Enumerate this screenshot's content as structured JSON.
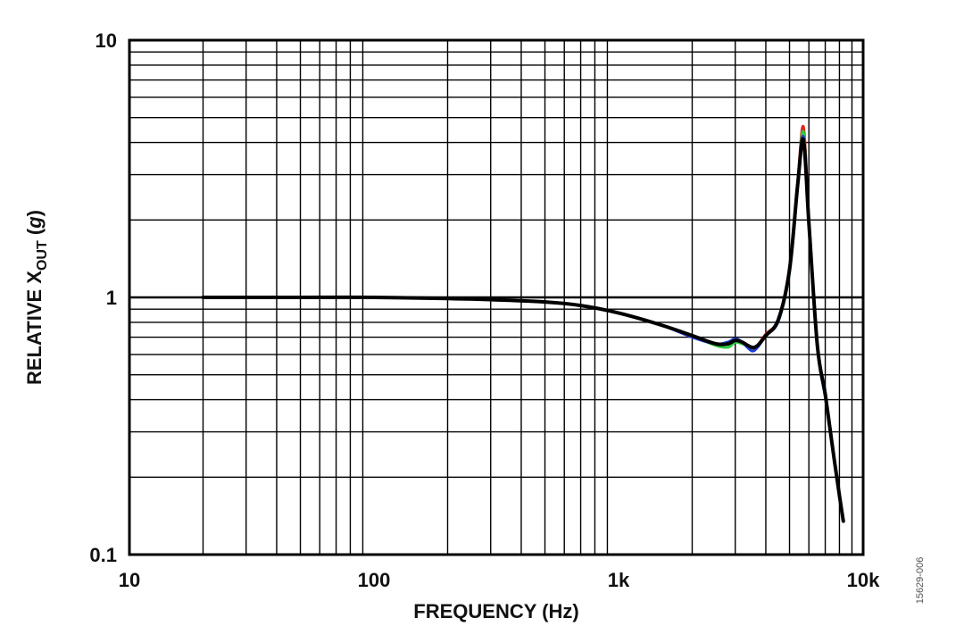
{
  "chart_data": {
    "type": "line",
    "xlabel": "FREQUENCY (Hz)",
    "ylabel": {
      "prefix": "RELATIVE X",
      "subscript": "OUT",
      "suffix": " (",
      "unit": "g",
      "close": ")"
    },
    "x_scale": "log",
    "y_scale": "log",
    "xlim": [
      10,
      10000
    ],
    "ylim": [
      0.1,
      10
    ],
    "grid": true,
    "x_ticks": [
      {
        "value": 10,
        "label": "10"
      },
      {
        "value": 100,
        "label": "100"
      },
      {
        "value": 1000,
        "label": "1k"
      },
      {
        "value": 10000,
        "label": "10k"
      }
    ],
    "y_ticks": [
      {
        "value": 0.1,
        "label": "0.1"
      },
      {
        "value": 1,
        "label": "1"
      },
      {
        "value": 10,
        "label": "10"
      }
    ],
    "series": [
      {
        "color": "#e8231c",
        "x": [
          20,
          30,
          50,
          100,
          200,
          300,
          500,
          700,
          1000,
          1500,
          2000,
          2500,
          2800,
          3000,
          3200,
          3500,
          3700,
          4000,
          4500,
          5000,
          5400,
          5700,
          6000,
          6500,
          7000,
          7500,
          8000,
          8300
        ],
        "y": [
          1.0,
          1.0,
          1.0,
          1.0,
          0.99,
          0.98,
          0.96,
          0.93,
          0.87,
          0.78,
          0.71,
          0.66,
          0.66,
          0.68,
          0.67,
          0.63,
          0.65,
          0.72,
          0.82,
          1.3,
          2.8,
          4.6,
          2.0,
          0.65,
          0.42,
          0.26,
          0.17,
          0.135
        ]
      },
      {
        "color": "#2ecc40",
        "x": [
          20,
          30,
          50,
          100,
          200,
          300,
          500,
          700,
          1000,
          1500,
          2000,
          2500,
          2800,
          3000,
          3200,
          3500,
          3700,
          4000,
          4500,
          5000,
          5400,
          5700,
          6000,
          6500,
          7000,
          7500,
          8000,
          8300
        ],
        "y": [
          1.0,
          1.0,
          1.0,
          1.0,
          0.99,
          0.98,
          0.96,
          0.93,
          0.87,
          0.78,
          0.71,
          0.65,
          0.64,
          0.67,
          0.66,
          0.64,
          0.65,
          0.71,
          0.81,
          1.25,
          2.7,
          4.4,
          1.95,
          0.64,
          0.41,
          0.26,
          0.17,
          0.135
        ]
      },
      {
        "color": "#1f3fd6",
        "x": [
          20,
          30,
          50,
          100,
          200,
          300,
          500,
          700,
          1000,
          1500,
          2000,
          2500,
          2800,
          3000,
          3200,
          3500,
          3700,
          4000,
          4500,
          5000,
          5400,
          5700,
          6000,
          6500,
          7000,
          7500,
          8000,
          8300
        ],
        "y": [
          1.0,
          1.0,
          1.0,
          1.0,
          0.99,
          0.98,
          0.96,
          0.93,
          0.87,
          0.78,
          0.7,
          0.66,
          0.67,
          0.69,
          0.67,
          0.62,
          0.64,
          0.71,
          0.81,
          1.27,
          2.75,
          4.2,
          1.95,
          0.64,
          0.41,
          0.26,
          0.17,
          0.135
        ]
      },
      {
        "color": "#000000",
        "x": [
          20,
          30,
          50,
          100,
          200,
          300,
          500,
          700,
          1000,
          1500,
          2000,
          2500,
          2800,
          3000,
          3200,
          3500,
          3700,
          4000,
          4500,
          5000,
          5400,
          5700,
          6000,
          6500,
          7000,
          7500,
          8000,
          8300
        ],
        "y": [
          1.0,
          1.0,
          1.0,
          1.0,
          0.99,
          0.98,
          0.96,
          0.93,
          0.87,
          0.78,
          0.71,
          0.66,
          0.66,
          0.68,
          0.67,
          0.64,
          0.65,
          0.71,
          0.82,
          1.28,
          2.75,
          4.1,
          1.95,
          0.65,
          0.42,
          0.26,
          0.17,
          0.135
        ]
      }
    ]
  },
  "figure_id": "15629-006"
}
